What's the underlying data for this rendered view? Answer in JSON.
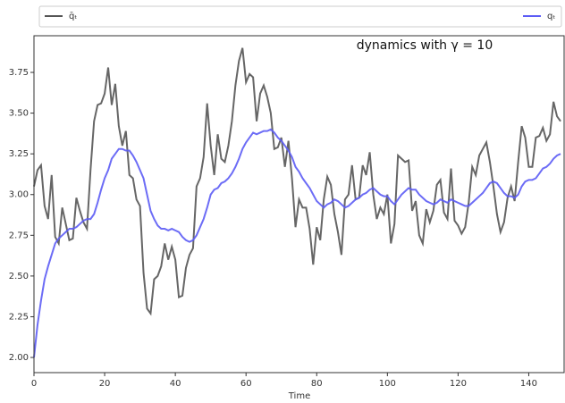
{
  "chart_data": {
    "type": "line",
    "annotation": "dynamics with γ = 10",
    "xlabel": "Time",
    "xlim": [
      0,
      150
    ],
    "ylim": [
      1.907,
      3.975
    ],
    "xticks": [
      0,
      20,
      40,
      60,
      80,
      100,
      120,
      140
    ],
    "yticks": [
      {
        "value": 2,
        "label": "2.00"
      },
      {
        "value": 2.25,
        "label": "2.25"
      },
      {
        "value": 2.5,
        "label": "2.50"
      },
      {
        "value": 2.75,
        "label": "2.75"
      },
      {
        "value": 3,
        "label": "3.00"
      },
      {
        "value": 3.25,
        "label": "3.25"
      },
      {
        "value": 3.5,
        "label": "3.50"
      },
      {
        "value": 3.75,
        "label": "3.75"
      }
    ],
    "x": [
      0,
      1,
      2,
      3,
      4,
      5,
      6,
      7,
      8,
      9,
      10,
      11,
      12,
      13,
      14,
      15,
      16,
      17,
      18,
      19,
      20,
      21,
      22,
      23,
      24,
      25,
      26,
      27,
      28,
      29,
      30,
      31,
      32,
      33,
      34,
      35,
      36,
      37,
      38,
      39,
      40,
      41,
      42,
      43,
      44,
      45,
      46,
      47,
      48,
      49,
      50,
      51,
      52,
      53,
      54,
      55,
      56,
      57,
      58,
      59,
      60,
      61,
      62,
      63,
      64,
      65,
      66,
      67,
      68,
      69,
      70,
      71,
      72,
      73,
      74,
      75,
      76,
      77,
      78,
      79,
      80,
      81,
      82,
      83,
      84,
      85,
      86,
      87,
      88,
      89,
      90,
      91,
      92,
      93,
      94,
      95,
      96,
      97,
      98,
      99,
      100,
      101,
      102,
      103,
      104,
      105,
      106,
      107,
      108,
      109,
      110,
      111,
      112,
      113,
      114,
      115,
      116,
      117,
      118,
      119,
      120,
      121,
      122,
      123,
      124,
      125,
      126,
      127,
      128,
      129,
      130,
      131,
      132,
      133,
      134,
      135,
      136,
      137,
      138,
      139,
      140,
      141,
      142,
      143,
      144,
      145,
      146,
      147,
      148,
      149
    ],
    "series": [
      {
        "name": "q̄ₜ",
        "color": "#555555",
        "values": [
          3.05,
          3.15,
          3.18,
          2.93,
          2.85,
          3.12,
          2.74,
          2.7,
          2.92,
          2.82,
          2.72,
          2.73,
          2.98,
          2.9,
          2.83,
          2.79,
          3.15,
          3.45,
          3.55,
          3.56,
          3.62,
          3.78,
          3.55,
          3.68,
          3.42,
          3.3,
          3.39,
          3.12,
          3.1,
          2.97,
          2.93,
          2.52,
          2.3,
          2.27,
          2.48,
          2.5,
          2.56,
          2.7,
          2.6,
          2.68,
          2.6,
          2.37,
          2.38,
          2.55,
          2.63,
          2.67,
          3.05,
          3.1,
          3.23,
          3.56,
          3.3,
          3.12,
          3.37,
          3.22,
          3.2,
          3.3,
          3.45,
          3.67,
          3.82,
          3.9,
          3.69,
          3.74,
          3.72,
          3.45,
          3.62,
          3.67,
          3.6,
          3.5,
          3.28,
          3.29,
          3.35,
          3.17,
          3.33,
          3.1,
          2.8,
          2.97,
          2.92,
          2.92,
          2.79,
          2.57,
          2.8,
          2.72,
          2.97,
          3.11,
          3.06,
          2.88,
          2.77,
          2.63,
          2.97,
          3.0,
          3.18,
          2.97,
          2.98,
          3.18,
          3.12,
          3.26,
          3.0,
          2.85,
          2.92,
          2.88,
          3.0,
          2.7,
          2.82,
          3.24,
          3.22,
          3.2,
          3.21,
          2.9,
          2.96,
          2.75,
          2.7,
          2.91,
          2.83,
          2.9,
          3.06,
          3.09,
          2.89,
          2.85,
          3.16,
          2.84,
          2.81,
          2.76,
          2.8,
          2.95,
          3.17,
          3.12,
          3.24,
          3.28,
          3.32,
          3.2,
          3.05,
          2.88,
          2.77,
          2.83,
          2.98,
          3.05,
          2.96,
          3.2,
          3.42,
          3.35,
          3.17,
          3.17,
          3.35,
          3.36,
          3.41,
          3.33,
          3.37,
          3.57,
          3.48,
          3.45
        ]
      },
      {
        "name": "qₜ",
        "color": "#5c5cf5",
        "values": [
          2.0,
          2.2,
          2.35,
          2.48,
          2.56,
          2.63,
          2.7,
          2.73,
          2.75,
          2.77,
          2.79,
          2.79,
          2.8,
          2.82,
          2.84,
          2.85,
          2.85,
          2.88,
          2.95,
          3.03,
          3.1,
          3.15,
          3.22,
          3.25,
          3.28,
          3.28,
          3.27,
          3.27,
          3.24,
          3.2,
          3.15,
          3.1,
          3.0,
          2.9,
          2.85,
          2.81,
          2.79,
          2.79,
          2.78,
          2.79,
          2.78,
          2.77,
          2.74,
          2.72,
          2.71,
          2.72,
          2.75,
          2.8,
          2.85,
          2.92,
          3.0,
          3.03,
          3.04,
          3.07,
          3.08,
          3.1,
          3.13,
          3.17,
          3.22,
          3.28,
          3.32,
          3.35,
          3.38,
          3.37,
          3.38,
          3.39,
          3.39,
          3.4,
          3.38,
          3.35,
          3.33,
          3.3,
          3.27,
          3.23,
          3.17,
          3.14,
          3.1,
          3.07,
          3.04,
          3.0,
          2.96,
          2.94,
          2.92,
          2.94,
          2.95,
          2.97,
          2.96,
          2.94,
          2.92,
          2.93,
          2.95,
          2.97,
          2.98,
          3.0,
          3.01,
          3.03,
          3.04,
          3.02,
          3.0,
          2.99,
          2.99,
          2.96,
          2.94,
          2.97,
          3.0,
          3.02,
          3.04,
          3.03,
          3.03,
          3.0,
          2.98,
          2.96,
          2.95,
          2.94,
          2.95,
          2.97,
          2.96,
          2.95,
          2.97,
          2.96,
          2.95,
          2.94,
          2.93,
          2.93,
          2.95,
          2.97,
          2.99,
          3.01,
          3.04,
          3.07,
          3.08,
          3.07,
          3.04,
          3.01,
          2.99,
          2.99,
          2.98,
          3.0,
          3.05,
          3.08,
          3.09,
          3.09,
          3.1,
          3.13,
          3.16,
          3.17,
          3.19,
          3.22,
          3.24,
          3.25
        ]
      }
    ]
  }
}
